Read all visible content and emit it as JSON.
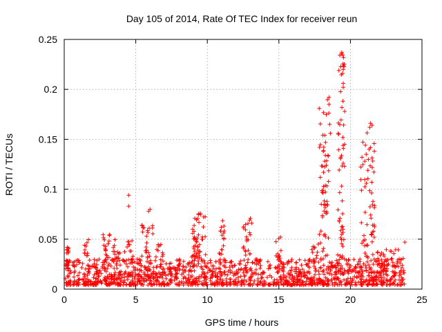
{
  "chart_data": {
    "type": "scatter",
    "title": "Day 105 of 2014, Rate Of TEC Index for receiver reun",
    "xlabel": "GPS time / hours",
    "ylabel": "ROTI / TECUs",
    "xlim": [
      0,
      25
    ],
    "ylim": [
      0,
      0.25
    ],
    "xticks": [
      0,
      5,
      10,
      15,
      20,
      25
    ],
    "xtick_labels": [
      "0",
      "5",
      "10",
      "15",
      "20",
      "25"
    ],
    "yticks": [
      0,
      0.05,
      0.1,
      0.15,
      0.2,
      0.25
    ],
    "ytick_labels": [
      "0",
      "0.05",
      "0.1",
      "0.15",
      "0.2",
      "0.25"
    ],
    "grid": true,
    "marker": "+",
    "marker_color": "#ff0000",
    "baseline": {
      "x_range": [
        0,
        23.8
      ],
      "y_min": 0.004,
      "y_max": 0.03,
      "samples": 1400
    },
    "bursts": [
      {
        "x": [
          0.1,
          0.4
        ],
        "y": [
          0.02,
          0.045
        ],
        "n": 20
      },
      {
        "x": [
          1.4,
          1.7
        ],
        "y": [
          0.025,
          0.05
        ],
        "n": 10
      },
      {
        "x": [
          2.7,
          3.2
        ],
        "y": [
          0.03,
          0.056
        ],
        "n": 16
      },
      {
        "x": [
          3.4,
          3.9
        ],
        "y": [
          0.03,
          0.052
        ],
        "n": 14
      },
      {
        "x": [
          4.2,
          4.9
        ],
        "y": [
          0.03,
          0.05
        ],
        "n": 12
      },
      {
        "x": [
          5.4,
          6.2
        ],
        "y": [
          0.03,
          0.065
        ],
        "n": 22
      },
      {
        "x": [
          6.4,
          7.0
        ],
        "y": [
          0.03,
          0.048
        ],
        "n": 10
      },
      {
        "x": [
          8.9,
          9.9
        ],
        "y": [
          0.03,
          0.076
        ],
        "n": 50
      },
      {
        "x": [
          10.8,
          11.2
        ],
        "y": [
          0.035,
          0.072
        ],
        "n": 16
      },
      {
        "x": [
          12.5,
          13.1
        ],
        "y": [
          0.03,
          0.072
        ],
        "n": 22
      },
      {
        "x": [
          14.7,
          15.2
        ],
        "y": [
          0.03,
          0.053
        ],
        "n": 10
      },
      {
        "x": [
          17.3,
          17.8
        ],
        "y": [
          0.02,
          0.048
        ],
        "n": 14
      },
      {
        "x": [
          17.8,
          18.5
        ],
        "y": [
          0.03,
          0.19
        ],
        "n": 60
      },
      {
        "x": [
          19.1,
          19.6
        ],
        "y": [
          0.03,
          0.237
        ],
        "n": 55
      },
      {
        "x": [
          20.7,
          21.7
        ],
        "y": [
          0.03,
          0.166
        ],
        "n": 60
      },
      {
        "x": [
          21.8,
          23.7
        ],
        "y": [
          0.02,
          0.04
        ],
        "n": 30
      }
    ],
    "highlights": [
      {
        "x": 4.5,
        "y": 0.094
      },
      {
        "x": 4.5,
        "y": 0.083
      },
      {
        "x": 6.0,
        "y": 0.08
      },
      {
        "x": 5.9,
        "y": 0.078
      },
      {
        "x": 9.5,
        "y": 0.076
      },
      {
        "x": 19.4,
        "y": 0.237
      },
      {
        "x": 19.5,
        "y": 0.22
      },
      {
        "x": 19.45,
        "y": 0.216
      },
      {
        "x": 19.5,
        "y": 0.206
      },
      {
        "x": 19.5,
        "y": 0.202
      },
      {
        "x": 19.6,
        "y": 0.178
      },
      {
        "x": 18.5,
        "y": 0.192
      },
      {
        "x": 18.5,
        "y": 0.185
      },
      {
        "x": 18.55,
        "y": 0.165
      },
      {
        "x": 18.6,
        "y": 0.156
      },
      {
        "x": 18.2,
        "y": 0.154
      },
      {
        "x": 18.1,
        "y": 0.138
      },
      {
        "x": 18.2,
        "y": 0.128
      },
      {
        "x": 21.4,
        "y": 0.166
      },
      {
        "x": 21.35,
        "y": 0.162
      },
      {
        "x": 21.3,
        "y": 0.14
      },
      {
        "x": 21.0,
        "y": 0.128
      },
      {
        "x": 19.6,
        "y": 0.145
      },
      {
        "x": 19.5,
        "y": 0.126
      },
      {
        "x": 23.8,
        "y": 0.047
      }
    ]
  }
}
